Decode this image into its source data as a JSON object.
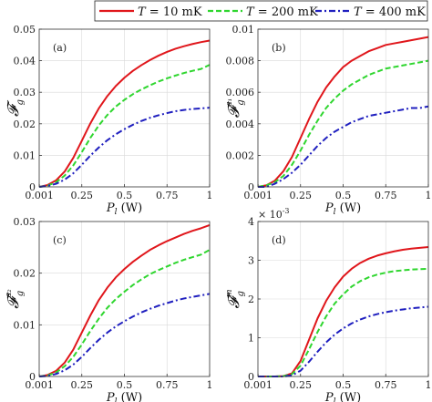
{
  "legend": {
    "entries": [
      {
        "prefix": "T",
        "rest": " = 10 mK",
        "color": "#e0161b",
        "dash": "solid"
      },
      {
        "prefix": "T",
        "rest": " = 200 mK",
        "color": "#2fd62f",
        "dash": "dashed"
      },
      {
        "prefix": "T",
        "rest": " = 400 mK",
        "color": "#1f1fbf",
        "dash": "dashdot"
      }
    ]
  },
  "chart_data": [
    {
      "type": "line",
      "panel_label": "(a)",
      "ylabel": "𝓕",
      "ylabel_sub": "g",
      "ylabel_sup": "",
      "xlabel": "P",
      "xlabel_sub": "l",
      "xlabel_unit": " (W)",
      "xlim": [
        0,
        1
      ],
      "ylim": [
        0,
        0.05
      ],
      "xticks": [
        0.001,
        0.25,
        0.5,
        0.75,
        1
      ],
      "xtick_labels": [
        "0.001",
        "0.25",
        "0.5",
        "0.75",
        "1"
      ],
      "yticks": [
        0,
        0.01,
        0.02,
        0.03,
        0.04,
        0.05
      ],
      "ytick_labels": [
        "0",
        "0.01",
        "0.02",
        "0.03",
        "0.04",
        "0.05"
      ],
      "exponent_label": "",
      "x": [
        0.001,
        0.05,
        0.1,
        0.15,
        0.2,
        0.25,
        0.3,
        0.35,
        0.4,
        0.45,
        0.5,
        0.55,
        0.6,
        0.65,
        0.7,
        0.75,
        0.8,
        0.85,
        0.9,
        0.95,
        1.0
      ],
      "series": [
        {
          "values": [
            0,
            0.0006,
            0.0021,
            0.0049,
            0.0092,
            0.0146,
            0.0201,
            0.0249,
            0.0288,
            0.032,
            0.0346,
            0.0368,
            0.0386,
            0.0402,
            0.0416,
            0.0428,
            0.0438,
            0.0446,
            0.0453,
            0.0459,
            0.0464
          ]
        },
        {
          "values": [
            0,
            0.0004,
            0.0015,
            0.0036,
            0.0068,
            0.011,
            0.0155,
            0.0195,
            0.0228,
            0.0255,
            0.0276,
            0.0294,
            0.0309,
            0.0322,
            0.0334,
            0.0344,
            0.0353,
            0.0361,
            0.0368,
            0.0374,
            0.0387
          ]
        },
        {
          "values": [
            0,
            0.0003,
            0.001,
            0.0023,
            0.0043,
            0.007,
            0.0099,
            0.0125,
            0.0148,
            0.0167,
            0.0183,
            0.0197,
            0.0209,
            0.0219,
            0.0227,
            0.0234,
            0.024,
            0.0244,
            0.0247,
            0.0249,
            0.0251
          ]
        }
      ]
    },
    {
      "type": "line",
      "panel_label": "(b)",
      "ylabel": "𝓕",
      "ylabel_sub": "g",
      "ylabel_sup": "a₁",
      "xlabel": "P",
      "xlabel_sub": "l",
      "xlabel_unit": " (W)",
      "xlim": [
        0,
        1
      ],
      "ylim": [
        0,
        0.01
      ],
      "xticks": [
        0.001,
        0.25,
        0.5,
        0.75,
        1
      ],
      "xtick_labels": [
        "0.001",
        "0.25",
        "0.5",
        "0.75",
        "1"
      ],
      "yticks": [
        0,
        0.002,
        0.004,
        0.006,
        0.008,
        0.01
      ],
      "ytick_labels": [
        "0",
        "0.002",
        "0.004",
        "0.006",
        "0.008",
        "0.01"
      ],
      "exponent_label": "",
      "x": [
        0.001,
        0.05,
        0.1,
        0.15,
        0.2,
        0.25,
        0.3,
        0.35,
        0.4,
        0.45,
        0.5,
        0.55,
        0.6,
        0.65,
        0.7,
        0.75,
        0.8,
        0.85,
        0.9,
        0.95,
        1.0
      ],
      "series": [
        {
          "values": [
            0,
            0.0001,
            0.0004,
            0.001,
            0.0019,
            0.0031,
            0.0043,
            0.0054,
            0.0063,
            0.007,
            0.0076,
            0.008,
            0.0083,
            0.0086,
            0.0088,
            0.009,
            0.0091,
            0.0092,
            0.0093,
            0.0094,
            0.0095
          ]
        },
        {
          "values": [
            0,
            0.0001,
            0.0003,
            0.0007,
            0.0014,
            0.0023,
            0.0033,
            0.0042,
            0.005,
            0.0056,
            0.0061,
            0.0065,
            0.0068,
            0.0071,
            0.0073,
            0.0075,
            0.0076,
            0.0077,
            0.0078,
            0.0079,
            0.008
          ]
        },
        {
          "values": [
            0,
            0.0,
            0.0002,
            0.0005,
            0.0009,
            0.0014,
            0.002,
            0.0026,
            0.0031,
            0.0035,
            0.0038,
            0.0041,
            0.0043,
            0.0045,
            0.0046,
            0.0047,
            0.0048,
            0.0049,
            0.005,
            0.005,
            0.0051
          ]
        }
      ]
    },
    {
      "type": "line",
      "panel_label": "(c)",
      "ylabel": "𝓕",
      "ylabel_sub": "g",
      "ylabel_sup": "a₂",
      "xlabel": "P",
      "xlabel_sub": "l",
      "xlabel_unit": " (W)",
      "xlim": [
        0,
        1
      ],
      "ylim": [
        0,
        0.03
      ],
      "xticks": [
        0.001,
        0.25,
        0.5,
        0.75,
        1
      ],
      "xtick_labels": [
        "0.001",
        "0.25",
        "0.5",
        "0.75",
        "1"
      ],
      "yticks": [
        0,
        0.01,
        0.02,
        0.03
      ],
      "ytick_labels": [
        "0",
        "0.01",
        "0.02",
        "0.03"
      ],
      "exponent_label": "",
      "x": [
        0.001,
        0.05,
        0.1,
        0.15,
        0.2,
        0.25,
        0.3,
        0.35,
        0.4,
        0.45,
        0.5,
        0.55,
        0.6,
        0.65,
        0.7,
        0.75,
        0.8,
        0.85,
        0.9,
        0.95,
        1.0
      ],
      "series": [
        {
          "values": [
            0,
            0.0003,
            0.0011,
            0.0027,
            0.0052,
            0.0085,
            0.0118,
            0.0148,
            0.0172,
            0.0192,
            0.0208,
            0.0222,
            0.0234,
            0.0245,
            0.0254,
            0.0262,
            0.0269,
            0.0276,
            0.0282,
            0.0287,
            0.0293
          ]
        },
        {
          "values": [
            0,
            0.0002,
            0.0008,
            0.002,
            0.0038,
            0.0062,
            0.0088,
            0.0112,
            0.0133,
            0.015,
            0.0164,
            0.0177,
            0.0188,
            0.0198,
            0.0206,
            0.0213,
            0.022,
            0.0226,
            0.0231,
            0.0236,
            0.0245
          ]
        },
        {
          "values": [
            0,
            0.0001,
            0.0005,
            0.0012,
            0.0023,
            0.0038,
            0.0055,
            0.0071,
            0.0085,
            0.0097,
            0.0107,
            0.0116,
            0.0124,
            0.0131,
            0.0137,
            0.0142,
            0.0147,
            0.0151,
            0.0154,
            0.0157,
            0.016
          ]
        }
      ]
    },
    {
      "type": "line",
      "panel_label": "(d)",
      "ylabel": "𝓕",
      "ylabel_sub": "g",
      "ylabel_sup": "m",
      "xlabel": "P",
      "xlabel_sub": "l",
      "xlabel_unit": " (W)",
      "xlim": [
        0,
        1
      ],
      "ylim": [
        0,
        4
      ],
      "xticks": [
        0.001,
        0.25,
        0.5,
        0.75,
        1
      ],
      "xtick_labels": [
        "0.001",
        "0.25",
        "0.5",
        "0.75",
        "1"
      ],
      "yticks": [
        0,
        1,
        2,
        3,
        4
      ],
      "ytick_labels": [
        "0",
        "1",
        "2",
        "3",
        "4"
      ],
      "exponent_label": "× 10",
      "exponent_power": "-3",
      "x": [
        0.001,
        0.05,
        0.1,
        0.15,
        0.2,
        0.25,
        0.3,
        0.35,
        0.4,
        0.45,
        0.5,
        0.55,
        0.6,
        0.65,
        0.7,
        0.75,
        0.8,
        0.85,
        0.9,
        0.95,
        1.0
      ],
      "series": [
        {
          "values": [
            0,
            0,
            0,
            0.01,
            0.08,
            0.4,
            0.95,
            1.5,
            1.95,
            2.3,
            2.58,
            2.78,
            2.93,
            3.04,
            3.12,
            3.18,
            3.23,
            3.27,
            3.3,
            3.32,
            3.34
          ]
        },
        {
          "values": [
            0,
            0,
            0,
            0.01,
            0.06,
            0.28,
            0.7,
            1.15,
            1.55,
            1.88,
            2.12,
            2.32,
            2.46,
            2.56,
            2.63,
            2.68,
            2.72,
            2.74,
            2.76,
            2.77,
            2.78
          ]
        },
        {
          "values": [
            0,
            0,
            0,
            0.0,
            0.03,
            0.15,
            0.38,
            0.64,
            0.88,
            1.08,
            1.24,
            1.37,
            1.47,
            1.55,
            1.61,
            1.66,
            1.7,
            1.73,
            1.76,
            1.78,
            1.8
          ]
        }
      ]
    }
  ]
}
